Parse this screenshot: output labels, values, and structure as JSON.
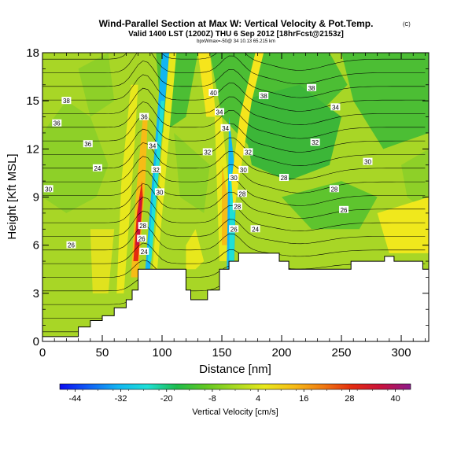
{
  "title": "Wind-Parallel Section at Max W: Vertical Velocity & Pot.Temp.",
  "copyright": "(C)",
  "subtitle": "Valid 1400 LST (1200Z) THU 6 Sep 2012 [18hrFcst@2153z]",
  "subsubtitle": "bpxWmax=-50@ 34 10.13 65.215 km",
  "chart_data": {
    "type": "heatmap",
    "xlabel": "Distance [nm]",
    "ylabel": "Height [Kft MSL]",
    "xlim": [
      0,
      323
    ],
    "ylim": [
      0,
      18
    ],
    "xticks": [
      "0",
      "50",
      "100",
      "150",
      "200",
      "250",
      "300"
    ],
    "yticks": [
      "0",
      "3",
      "6",
      "9",
      "12",
      "15",
      "18"
    ],
    "colorbar": {
      "label": "Vertical Velocity [cm/s]",
      "ticks": [
        "-44",
        "-32",
        "-20",
        "-8",
        "4",
        "16",
        "28",
        "40"
      ],
      "range": [
        -48,
        44
      ],
      "colors": [
        "#0b0bf0",
        "#1060f6",
        "#12b6f2",
        "#1ee0d6",
        "#1ebc4c",
        "#62c822",
        "#a8da22",
        "#e8e81c",
        "#f6bc16",
        "#f07a12",
        "#e42c10",
        "#c8123e",
        "#8c1a8c"
      ]
    },
    "contour_labels": [
      "40",
      "38",
      "36",
      "34",
      "32",
      "30",
      "28",
      "26",
      "24",
      "36",
      "36",
      "34",
      "32",
      "30",
      "28",
      "38",
      "38",
      "34",
      "32",
      "30",
      "28",
      "26",
      "24",
      "34",
      "32",
      "30",
      "28",
      "26",
      "24",
      "30",
      "28",
      "26"
    ],
    "terrain": [
      [
        0,
        0.3
      ],
      [
        30,
        0.3
      ],
      [
        30,
        0.9
      ],
      [
        40,
        0.9
      ],
      [
        40,
        1.3
      ],
      [
        50,
        1.3
      ],
      [
        50,
        1.6
      ],
      [
        60,
        1.6
      ],
      [
        60,
        2.1
      ],
      [
        70,
        2.1
      ],
      [
        70,
        2.6
      ],
      [
        75,
        2.6
      ],
      [
        75,
        3.2
      ],
      [
        80,
        3.2
      ],
      [
        80,
        4.5
      ],
      [
        120,
        4.5
      ],
      [
        120,
        3.2
      ],
      [
        124,
        3.2
      ],
      [
        124,
        2.6
      ],
      [
        138,
        2.6
      ],
      [
        138,
        3.2
      ],
      [
        148,
        3.2
      ],
      [
        148,
        4.5
      ],
      [
        156,
        4.5
      ],
      [
        156,
        5.0
      ],
      [
        164,
        5.0
      ],
      [
        164,
        5.5
      ],
      [
        198,
        5.5
      ],
      [
        198,
        5.0
      ],
      [
        206,
        5.0
      ],
      [
        206,
        4.5
      ],
      [
        258,
        4.5
      ],
      [
        258,
        5.0
      ],
      [
        286,
        5.0
      ],
      [
        286,
        5.3
      ],
      [
        294,
        5.3
      ],
      [
        294,
        5.0
      ],
      [
        318,
        5.0
      ],
      [
        318,
        4.5
      ],
      [
        323,
        4.5
      ]
    ]
  }
}
